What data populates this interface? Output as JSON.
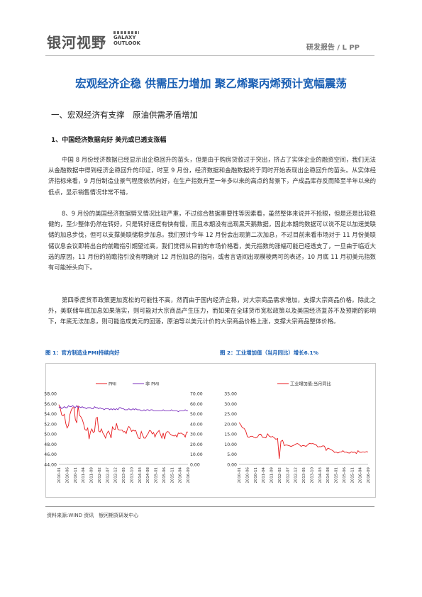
{
  "header": {
    "logo_cn": "银河视野",
    "logo_en_1": "GALAXY",
    "logo_en_2": "OUTLOOK",
    "report_tag": "研发报告 / L PP"
  },
  "title": "宏观经济企稳 供需压力增加 聚乙烯聚丙烯预计宽幅震荡",
  "section1_title": "一、宏观经济有支撑　原油供需矛盾增加",
  "sub1_title": "1、中国经济数据向好 美元或已透支涨幅",
  "paragraphs": [
    "中国 8 月份经济数据已经显示出企稳回升的苗头，但是由于购房贷款过于突出，挤占了实体企业的融资空间，我们无法从金融数据中得到经济企稳回升的印证，时至 9 月份，经济数据和金融数据终于同时开始表现出企稳回升的苗头。从实体经济指标来看，9 月份制造业景气程度依然向好，在生产指数升至一年多以来的高点的背景下，产成品库存反而降至半年以来的低点，显示销售情况非常不错。",
    "8、9 月份的美国经济数据劈叉情况比较严重，不过综合数据重要性等因素看，虽然整体来说并不抢眼，但是还是比较稳健的，至少整体仍然在转好，只是转好速度有快有慢，而且本期没有出现黑天鹅数据，因此本期的数据可以说不足以加速美联储的加息步伐，但可以支撑美联储稳步加息。我们预计今年 12 月份会出现第二次加息，不过目前来看市场对于 11 月份美联储议息会议即将出台的前瞻指引期望过高，我们觉得从目前的市场价格看，美元指数的涨幅可能已经透支了，一旦由于临近大选的原因，11 月份的前瞻指引没有明确对 12 月份加息的指向，或者言语间出现模棱两可的表述，10 月底 11 月初美元指数有可能掉头向下。",
    "第四季度货币政策更加宽松的可能性不高，然而由于国内经济企稳，对大宗商品需求增加，支撑大宗商品价格。除此之外，美联储年底加息如果落实，则可能对大宗商品产生压力，而如果在全球货币宽松政策以及美国经济复苏不及预期的影响下，年底无法加息，则可能造成美元的回落，原油等以美元计价的大宗商品价格上涨，支撑大宗商品整体价格。"
  ],
  "figure1_caption": "图 1：官方制造业PMI持续向好",
  "figure2_caption": "图 2：工业增加值（当月同比）增长6.1%",
  "footer": "资料来源:WIND 资讯　银河期货研发中心",
  "colors": {
    "accent": "#1a5fb4",
    "series_red": "#e8191c",
    "series_purple": "#7b2fbe"
  },
  "chart_data": [
    {
      "type": "line",
      "title": "",
      "legend": [
        "PMI",
        "非 PMI"
      ],
      "legend_placement": "top",
      "x_tick_labels": [
        "2010-01",
        "2010-06",
        "2010-11",
        "2011-04",
        "2011-09",
        "2012-02",
        "2012-07",
        "2012-12",
        "2013-05",
        "2013-10",
        "2014-03",
        "2014-08",
        "2015-01",
        "2015-06",
        "2015-11",
        "2016-04",
        "2016-09"
      ],
      "y_left_ticks": [
        "58.00",
        "56.00",
        "54.00",
        "52.00",
        "50.00",
        "48.00",
        "46.00",
        "44.00"
      ],
      "y_left_range": [
        44,
        58
      ],
      "y_right_ticks": [
        "70.00",
        "60.00",
        "50.00",
        "40.00",
        "30.00",
        "20.00",
        "10.00",
        "0.00"
      ],
      "y_right_range": [
        0,
        70
      ],
      "series": [
        {
          "name": "PMI",
          "axis": "left",
          "color": "#e8191c",
          "values": [
            55.8,
            55.1,
            53.8,
            53.6,
            53.9,
            52.1,
            51.2,
            51.7,
            53.8,
            54.7,
            55.2,
            55.2,
            52.9,
            52.2,
            55.6,
            53.7,
            53.4,
            52.9,
            52.0,
            50.9,
            50.7,
            51.2,
            49.0,
            50.4,
            51.0,
            50.3,
            50.5,
            53.1,
            53.3,
            50.6,
            50.4,
            51.0,
            50.2,
            49.8,
            49.2,
            50.1,
            50.6,
            50.1,
            49.2,
            51.4,
            51.0,
            50.9,
            52.1,
            50.9,
            50.8,
            50.8,
            50.8,
            50.4,
            50.5,
            50.1,
            51.1,
            51.5,
            51.1,
            50.5,
            50.8,
            50.6,
            50.7,
            49.8,
            49.2,
            49.1,
            50.5,
            49.8,
            49.2,
            49.2,
            49.7,
            50.1,
            50.7,
            50.6,
            50.0,
            50.3,
            49.4,
            50.1,
            50.4,
            50.7,
            49.9,
            49.2,
            50.2,
            49.0,
            50.2,
            50.5,
            50.4,
            50.0,
            49.8,
            49.7,
            49.6,
            49.8,
            49.4,
            50.2,
            50.1,
            50.2,
            50.0,
            49.9,
            49.4,
            50.4,
            50.4
          ]
        },
        {
          "name": "非 PMI",
          "axis": "right",
          "color": "#7b2fbe",
          "values": [
            56,
            57,
            55,
            56,
            57,
            56,
            56,
            58,
            57,
            57,
            58,
            57,
            56,
            58,
            56,
            57,
            56,
            57,
            56,
            56,
            55,
            56,
            56,
            56,
            55,
            55,
            57,
            56,
            56,
            55,
            56,
            55,
            55,
            54,
            55,
            55,
            55,
            54,
            55,
            54,
            55,
            54,
            55,
            54,
            56,
            56,
            55,
            55,
            54,
            54,
            54,
            55,
            54,
            54,
            55,
            54,
            55,
            54,
            54,
            54,
            53,
            53,
            54,
            53,
            54,
            54,
            53,
            54,
            54,
            53,
            53,
            53,
            53,
            53,
            53,
            53,
            54,
            53,
            53,
            53,
            53,
            53,
            54,
            53,
            53,
            53,
            53,
            52,
            53,
            53,
            53,
            53,
            54,
            53,
            53
          ]
        }
      ]
    },
    {
      "type": "line",
      "title": "",
      "legend": [
        "工业增加值:当月同比"
      ],
      "legend_placement": "top",
      "x_tick_labels": [
        "2010-01",
        "2010-06",
        "2010-11",
        "2011-04",
        "2011-09",
        "2012-02",
        "2012-07",
        "2012-12",
        "2013-05",
        "2013-10",
        "2014-03",
        "2014-08",
        "2015-01",
        "2015-06",
        "2015-11",
        "2016-04",
        "2016-09"
      ],
      "y_ticks": [
        "35.00",
        "30.00",
        "25.00",
        "20.00",
        "15.00",
        "10.00",
        "5.00",
        "0.00"
      ],
      "y_range": [
        0,
        35
      ],
      "series": [
        {
          "name": "工业增加值:当月同比",
          "color": "#e8191c",
          "values": [
            20.7,
            19.6,
            18.1,
            17.8,
            16.5,
            13.7,
            13.4,
            13.9,
            13.9,
            13.3,
            13.1,
            13.5,
            14.8,
            14.9,
            13.4,
            13.3,
            13.1,
            15.1,
            14.0,
            13.5,
            13.8,
            13.2,
            12.4,
            12.8,
            2.8,
            11.4,
            11.9,
            9.3,
            9.6,
            9.5,
            9.2,
            8.9,
            9.2,
            9.6,
            10.1,
            10.3,
            9.7,
            8.9,
            9.3,
            9.2,
            8.9,
            9.7,
            10.4,
            10.2,
            10.3,
            10.0,
            9.7,
            8.6,
            8.8,
            8.7,
            9.2,
            9.0,
            6.9,
            8.0,
            7.7,
            7.2,
            6.8,
            5.9,
            6.1,
            5.6,
            6.1,
            6.1,
            6.8,
            6.0,
            6.1,
            5.7,
            5.6,
            6.2,
            5.9,
            6.1,
            5.4,
            6.8,
            6.0,
            6.0,
            6.2,
            6.0,
            6.3,
            6.1
          ]
        }
      ]
    }
  ]
}
